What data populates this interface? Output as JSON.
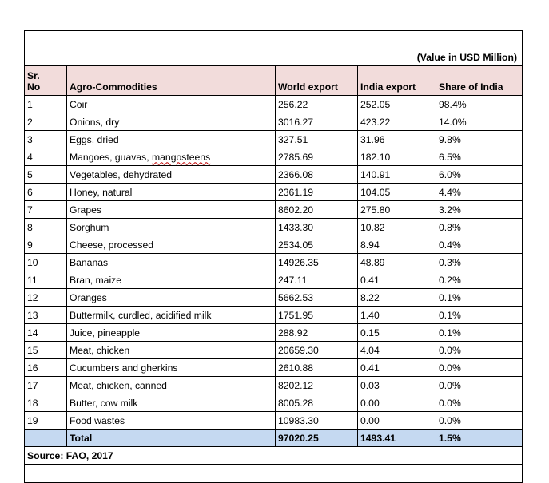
{
  "unit_note": "(Value in USD Million)",
  "columns": {
    "sr_no": "Sr. No",
    "commodity": "Agro-Commodities",
    "world": "World export",
    "india": "India export",
    "share": "Share of India"
  },
  "rows": [
    {
      "sr": "1",
      "commodity": "Coir",
      "world": "256.22",
      "india": "252.05",
      "share": "98.4%"
    },
    {
      "sr": "2",
      "commodity": "Onions, dry",
      "world": "3016.27",
      "india": "423.22",
      "share": "14.0%"
    },
    {
      "sr": "3",
      "commodity": "Eggs, dried",
      "world": "327.51",
      "india": "31.96",
      "share": "9.8%"
    },
    {
      "sr": "4",
      "commodity": "Mangoes, guavas, ",
      "commodity_tail": "mangosteens",
      "world": "2785.69",
      "india": "182.10",
      "share": "6.5%"
    },
    {
      "sr": "5",
      "commodity": "Vegetables, dehydrated",
      "world": "2366.08",
      "india": "140.91",
      "share": "6.0%"
    },
    {
      "sr": "6",
      "commodity": "Honey, natural",
      "world": "2361.19",
      "india": "104.05",
      "share": "4.4%"
    },
    {
      "sr": "7",
      "commodity": "Grapes",
      "world": "8602.20",
      "india": "275.80",
      "share": "3.2%"
    },
    {
      "sr": "8",
      "commodity": "Sorghum",
      "world": "1433.30",
      "india": "10.82",
      "share": "0.8%"
    },
    {
      "sr": "9",
      "commodity": "Cheese, processed",
      "world": "2534.05",
      "india": "8.94",
      "share": "0.4%"
    },
    {
      "sr": "10",
      "commodity": "Bananas",
      "world": "14926.35",
      "india": "48.89",
      "share": "0.3%"
    },
    {
      "sr": "11",
      "commodity": "Bran, maize",
      "world": "247.11",
      "india": "0.41",
      "share": "0.2%"
    },
    {
      "sr": "12",
      "commodity": "Oranges",
      "world": "5662.53",
      "india": "8.22",
      "share": "0.1%"
    },
    {
      "sr": "13",
      "commodity": "Buttermilk, curdled, acidified milk",
      "world": "1751.95",
      "india": "1.40",
      "share": "0.1%"
    },
    {
      "sr": "14",
      "commodity": "Juice, pineapple",
      "world": "288.92",
      "india": "0.15",
      "share": "0.1%"
    },
    {
      "sr": "15",
      "commodity": "Meat, chicken",
      "world": "20659.30",
      "india": "4.04",
      "share": "0.0%"
    },
    {
      "sr": "16",
      "commodity": "Cucumbers and gherkins",
      "world": "2610.88",
      "india": "0.41",
      "share": "0.0%"
    },
    {
      "sr": "17",
      "commodity": "Meat, chicken, canned",
      "world": "8202.12",
      "india": "0.03",
      "share": "0.0%"
    },
    {
      "sr": "18",
      "commodity": "Butter, cow milk",
      "world": "8005.28",
      "india": "0.00",
      "share": "0.0%"
    },
    {
      "sr": "19",
      "commodity": "Food wastes",
      "world": "10983.30",
      "india": "0.00",
      "share": "0.0%"
    }
  ],
  "total": {
    "label": "Total",
    "world": "97020.25",
    "india": "1493.41",
    "share": "1.5%"
  },
  "source": "Source: FAO, 2017"
}
